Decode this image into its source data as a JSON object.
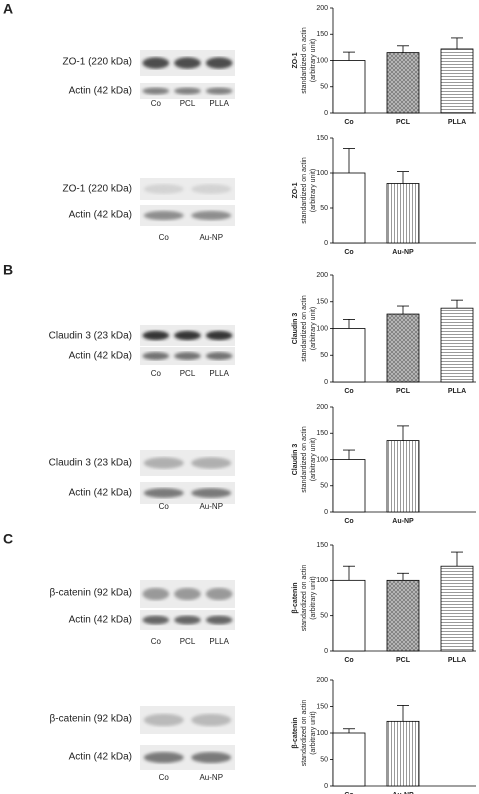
{
  "panels": [
    "A",
    "B",
    "C"
  ],
  "blots": [
    {
      "labels": [
        "ZO-1 (220 kDa)",
        "Actin (42 kDa)"
      ],
      "lanes": [
        "Co",
        "PCL",
        "PLLA"
      ]
    },
    {
      "labels": [
        "ZO-1 (220 kDa)",
        "Actin (42 kDa)"
      ],
      "lanes": [
        "Co",
        "Au-NP"
      ]
    },
    {
      "labels": [
        "Claudin 3 (23 kDa)",
        "Actin (42 kDa)"
      ],
      "lanes": [
        "Co",
        "PCL",
        "PLLA"
      ]
    },
    {
      "labels": [
        "Claudin 3 (23 kDa)",
        "Actin (42 kDa)"
      ],
      "lanes": [
        "Co",
        "Au-NP"
      ]
    },
    {
      "labels": [
        "β-catenin (92 kDa)",
        "Actin (42 kDa)"
      ],
      "lanes": [
        "Co",
        "PCL",
        "PLLA"
      ]
    },
    {
      "labels": [
        "β-catenin (92 kDa)",
        "Actin (42 kDa)"
      ],
      "lanes": [
        "Co",
        "Au-NP"
      ]
    }
  ],
  "chart_data": [
    {
      "type": "bar",
      "ylabel": [
        "ZO-1",
        "standardized on actin",
        "(arbitrary unit)"
      ],
      "categories": [
        "Co",
        "PCL",
        "PLLA"
      ],
      "values": [
        100,
        115,
        122
      ],
      "errors": [
        16,
        13,
        21
      ],
      "patterns": [
        "none",
        "crosshatch",
        "horizontal"
      ],
      "ylim": [
        0,
        200
      ],
      "yticks": [
        0,
        50,
        100,
        150,
        200
      ]
    },
    {
      "type": "bar",
      "ylabel": [
        "ZO-1",
        "standardized on actin",
        "(arbitrary unit)"
      ],
      "categories": [
        "Co",
        "Au-NP"
      ],
      "values": [
        100,
        85
      ],
      "errors": [
        35,
        17
      ],
      "patterns": [
        "none",
        "vertical"
      ],
      "ylim": [
        0,
        150
      ],
      "yticks": [
        0,
        50,
        100,
        150
      ]
    },
    {
      "type": "bar",
      "ylabel": [
        "Claudin 3",
        "standardized on actin",
        "(arbitrary unit)"
      ],
      "categories": [
        "Co",
        "PCL",
        "PLLA"
      ],
      "values": [
        100,
        127,
        138
      ],
      "errors": [
        17,
        15,
        15
      ],
      "patterns": [
        "none",
        "crosshatch",
        "horizontal"
      ],
      "ylim": [
        0,
        200
      ],
      "yticks": [
        0,
        50,
        100,
        150,
        200
      ]
    },
    {
      "type": "bar",
      "ylabel": [
        "Claudin 3",
        "standardized on actin",
        "(arbitrary unit)"
      ],
      "categories": [
        "Co",
        "Au-NP"
      ],
      "values": [
        100,
        136
      ],
      "errors": [
        18,
        28
      ],
      "patterns": [
        "none",
        "vertical"
      ],
      "ylim": [
        0,
        200
      ],
      "yticks": [
        0,
        50,
        100,
        150,
        200
      ]
    },
    {
      "type": "bar",
      "ylabel": [
        "β-catenin",
        "standardized on actin",
        "(arbitrary unit)"
      ],
      "categories": [
        "Co",
        "PCL",
        "PLLA"
      ],
      "values": [
        100,
        100,
        120
      ],
      "errors": [
        20,
        10,
        20
      ],
      "patterns": [
        "none",
        "crosshatch",
        "horizontal"
      ],
      "ylim": [
        0,
        150
      ],
      "yticks": [
        0,
        50,
        100,
        150
      ]
    },
    {
      "type": "bar",
      "ylabel": [
        "β-catenin",
        "standardized on actin",
        "(arbitrary unit)"
      ],
      "categories": [
        "Co",
        "Au-NP"
      ],
      "values": [
        100,
        122
      ],
      "errors": [
        8,
        30
      ],
      "patterns": [
        "none",
        "vertical"
      ],
      "ylim": [
        0,
        200
      ],
      "yticks": [
        0,
        50,
        100,
        150,
        200
      ]
    }
  ]
}
